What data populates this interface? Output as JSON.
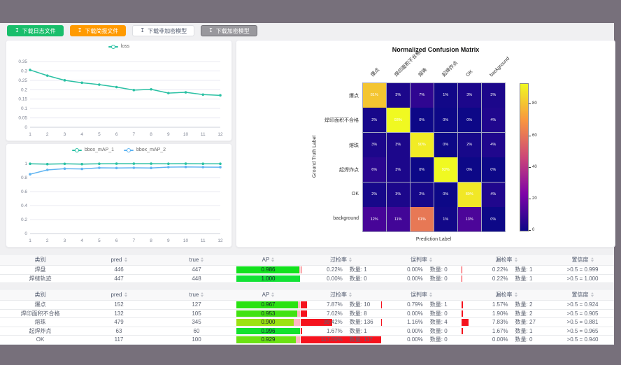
{
  "colors": {
    "page_bg": "#77707b",
    "content_bg": "#f0f0f2",
    "green_button": "#19be6b",
    "orange_button": "#ff9a00",
    "gray_button": "#99989d",
    "teal_series": "#2bc1a4",
    "blue_series": "#5fb4f2",
    "ap_track_pink": "#ffb6c4",
    "rate_bar_red": "#f5121d"
  },
  "toolbar": {
    "download_icon": "↧",
    "buttons": [
      {
        "label": "下载日志文件",
        "style": "green"
      },
      {
        "label": "下载简报文件",
        "style": "orange"
      },
      {
        "label": "下载非加密模型",
        "style": "plain"
      },
      {
        "label": "下载加密模型",
        "style": "gray"
      }
    ]
  },
  "chart_data": [
    {
      "type": "line",
      "id": "loss",
      "legend": [
        "loss"
      ],
      "legend_position": "top-center",
      "x": [
        1,
        2,
        3,
        4,
        5,
        6,
        7,
        8,
        9,
        10,
        11,
        12
      ],
      "series": [
        {
          "name": "loss",
          "color": "#2bc1a4",
          "values": [
            0.305,
            0.275,
            0.25,
            0.237,
            0.227,
            0.214,
            0.198,
            0.202,
            0.182,
            0.186,
            0.174,
            0.17
          ]
        }
      ],
      "ylim": [
        0,
        0.35
      ],
      "yticks": [
        0,
        0.05,
        0.1,
        0.15,
        0.2,
        0.25,
        0.3,
        0.35
      ],
      "grid": true
    },
    {
      "type": "line",
      "id": "bbox_mAP",
      "legend": [
        "bbox_mAP_1",
        "bbox_mAP_2"
      ],
      "legend_position": "top-center",
      "x": [
        1,
        2,
        3,
        4,
        5,
        6,
        7,
        8,
        9,
        10,
        11,
        12
      ],
      "series": [
        {
          "name": "bbox_mAP_1",
          "color": "#2bc1a4",
          "values": [
            0.998,
            0.993,
            0.997,
            0.993,
            0.998,
            0.999,
            0.999,
            0.999,
            0.998,
            0.999,
            0.998,
            0.998
          ]
        },
        {
          "name": "bbox_mAP_2",
          "color": "#5fb4f2",
          "values": [
            0.848,
            0.91,
            0.928,
            0.924,
            0.94,
            0.937,
            0.94,
            0.938,
            0.95,
            0.953,
            0.95,
            0.949
          ]
        }
      ],
      "ylim": [
        0,
        1
      ],
      "yticks": [
        0,
        0.2,
        0.4,
        0.6,
        0.8,
        1
      ],
      "grid": true
    },
    {
      "type": "heatmap",
      "id": "confusion_matrix",
      "title": "Normalized Confusion Matrix",
      "xlabel": "Prediction Label",
      "ylabel": "Ground Truth Label",
      "labels": [
        "爆点",
        "焊印面积不合格",
        "熔珠",
        "起焊炸点",
        "OK",
        "background"
      ],
      "values_percent": [
        [
          81,
          3,
          7,
          1,
          3,
          3
        ],
        [
          2,
          93,
          0,
          0,
          0,
          4
        ],
        [
          3,
          3,
          90,
          0,
          2,
          4
        ],
        [
          6,
          3,
          0,
          93,
          0,
          0
        ],
        [
          2,
          3,
          2,
          0,
          89,
          4
        ],
        [
          12,
          11,
          61,
          1,
          13,
          0
        ]
      ],
      "colormap": "plasma",
      "vmax": 93,
      "colorbar_ticks": [
        0,
        20,
        40,
        60,
        80
      ]
    }
  ],
  "tables": [
    {
      "headers": [
        "类别",
        "pred",
        "true",
        "AP",
        "过检率",
        "误判率",
        "漏检率",
        "置信度"
      ],
      "count_prefix": "数量: ",
      "rows": [
        {
          "label": "焊盘",
          "pred": "446",
          "true": "447",
          "ap": 0.986,
          "over_pct": "0.22%",
          "over_n": "数量: 1",
          "over_val": 0.22,
          "mis_pct": "0.00%",
          "mis_n": "数量: 0",
          "mis_val": 0,
          "miss_pct": "0.22%",
          "miss_n": "数量: 1",
          "miss_val": 0.22,
          "conf": ">0.5 = 0.999"
        },
        {
          "label": "焊缝轨迹",
          "pred": "447",
          "true": "448",
          "ap": 1.0,
          "over_pct": "0.00%",
          "over_n": "数量: 0",
          "over_val": 0,
          "mis_pct": "0.00%",
          "mis_n": "数量: 0",
          "mis_val": 0,
          "miss_pct": "0.22%",
          "miss_n": "数量: 1",
          "miss_val": 0.22,
          "conf": ">0.5 = 1.000"
        }
      ]
    },
    {
      "headers": [
        "类别",
        "pred",
        "true",
        "AP",
        "过检率",
        "误判率",
        "漏检率",
        "置信度"
      ],
      "count_prefix": "数量: ",
      "rows": [
        {
          "label": "爆点",
          "pred": "152",
          "true": "127",
          "ap": 0.967,
          "over_pct": "7.87%",
          "over_n": "数量: 10",
          "over_val": 7.87,
          "mis_pct": "0.79%",
          "mis_n": "数量: 1",
          "mis_val": 0.79,
          "miss_pct": "1.57%",
          "miss_n": "数量: 2",
          "miss_val": 1.57,
          "conf": ">0.5 = 0.924"
        },
        {
          "label": "焊印面积不合格",
          "pred": "132",
          "true": "105",
          "ap": 0.953,
          "over_pct": "7.62%",
          "over_n": "数量: 8",
          "over_val": 7.62,
          "mis_pct": "0.00%",
          "mis_n": "数量: 0",
          "mis_val": 0,
          "miss_pct": "1.90%",
          "miss_n": "数量: 2",
          "miss_val": 1.9,
          "conf": ">0.5 = 0.905"
        },
        {
          "label": "熔珠",
          "pred": "479",
          "true": "345",
          "ap": 0.9,
          "over_pct": "39.42%",
          "over_n": "数量: 136",
          "over_val": 39.42,
          "mis_pct": "1.16%",
          "mis_n": "数量: 4",
          "mis_val": 1.16,
          "miss_pct": "7.83%",
          "miss_n": "数量: 27",
          "miss_val": 7.83,
          "conf": ">0.5 = 0.881"
        },
        {
          "label": "起焊炸点",
          "pred": "63",
          "true": "60",
          "ap": 0.996,
          "over_pct": "1.67%",
          "over_n": "数量: 1",
          "over_val": 1.67,
          "mis_pct": "0.00%",
          "mis_n": "数量: 0",
          "mis_val": 0,
          "miss_pct": "1.67%",
          "miss_n": "数量: 1",
          "miss_val": 1.67,
          "conf": ">0.5 = 0.965"
        },
        {
          "label": "OK",
          "pred": "117",
          "true": "100",
          "ap": 0.929,
          "over_pct": "117.00%",
          "over_n": "数量: 117",
          "over_val": 117,
          "mis_pct": "0.00%",
          "mis_n": "数量: 0",
          "mis_val": 0,
          "miss_pct": "0.00%",
          "miss_n": "数量: 0",
          "miss_val": 0,
          "conf": ">0.5 = 0.940"
        }
      ]
    }
  ]
}
